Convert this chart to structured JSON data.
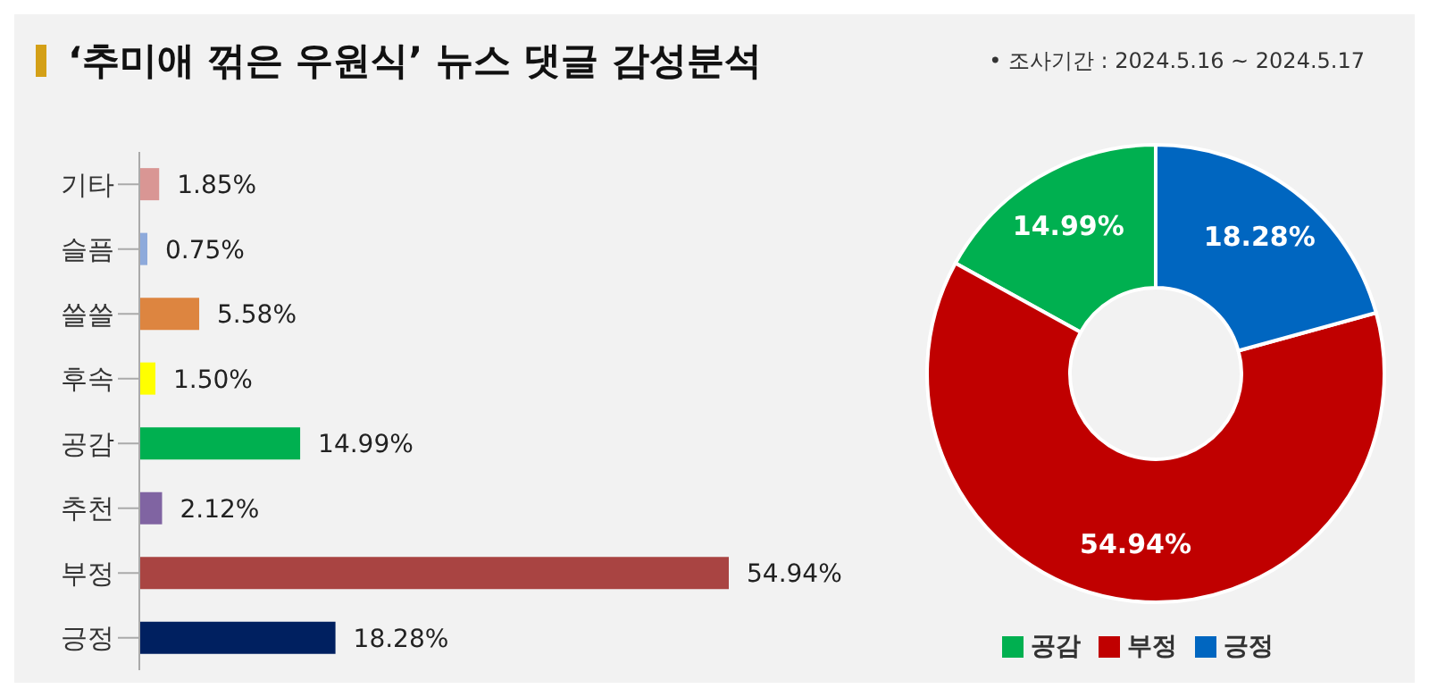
{
  "chart_data": [
    {
      "type": "bar",
      "orientation": "horizontal",
      "title": "‘추미애 꺾은 우원식’ 뉴스 댓글 감성분석",
      "annotations": [
        "•  조사기간 : 2024.5.16 ~ 2024.5.17"
      ],
      "categories": [
        "기타",
        "슬픔",
        "쓸쓸",
        "후속",
        "공감",
        "추천",
        "부정",
        "긍정"
      ],
      "values": [
        1.85,
        0.75,
        5.58,
        1.5,
        14.99,
        2.12,
        54.94,
        18.28
      ],
      "colors": [
        "#d99694",
        "#8eaadb",
        "#dd8540",
        "#ffff00",
        "#00b050",
        "#8064a2",
        "#a94442",
        "#002060"
      ],
      "value_labels": [
        "1.85%",
        "0.75%",
        "5.58%",
        "1.50%",
        "14.99%",
        "2.12%",
        "54.94%",
        "18.28%"
      ]
    },
    {
      "type": "donut",
      "categories": [
        "공감",
        "부정",
        "긍정"
      ],
      "values": [
        14.99,
        54.94,
        18.28
      ],
      "colors": [
        "#00b050",
        "#c00000",
        "#0066c0"
      ],
      "value_labels": [
        "14.99%",
        "54.94%",
        "18.28%"
      ],
      "legend": "bottom"
    }
  ]
}
